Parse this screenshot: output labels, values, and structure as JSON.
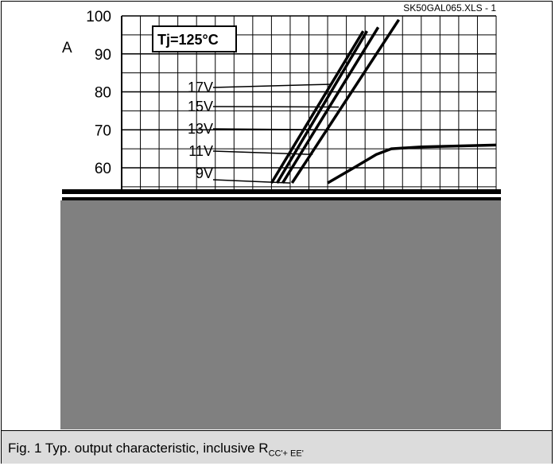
{
  "chart_data": {
    "type": "line",
    "file_label": "SK50GAL065.XLS - 1",
    "y_unit": "A",
    "annotation": "Tj=125°C",
    "yticks": [
      "100",
      "90",
      "80",
      "70",
      "60"
    ],
    "ylim": [
      55,
      100
    ],
    "xlim": [
      0,
      10
    ],
    "grid": true,
    "series": [
      {
        "name": "17V",
        "points": [
          [
            4.0,
            56
          ],
          [
            6.45,
            96
          ]
        ]
      },
      {
        "name": "15V",
        "points": [
          [
            4.15,
            56
          ],
          [
            6.55,
            96
          ]
        ]
      },
      {
        "name": "13V",
        "points": [
          [
            4.3,
            56
          ],
          [
            6.85,
            97
          ]
        ]
      },
      {
        "name": "11V",
        "points": [
          [
            4.55,
            56
          ],
          [
            7.4,
            99
          ]
        ]
      },
      {
        "name": "9V",
        "points": [
          [
            5.5,
            56
          ],
          [
            6.2,
            60
          ],
          [
            6.8,
            63.5
          ],
          [
            7.2,
            65
          ],
          [
            8.0,
            65.5
          ],
          [
            10.0,
            66
          ]
        ]
      }
    ],
    "caption_main": "Fig. 1 Typ. output characteristic, inclusive R",
    "caption_sub": "CC'+ EE'"
  },
  "colors": {
    "redaction": "#808080",
    "caption_background": "#dcdcdc",
    "lines": "#000000"
  }
}
